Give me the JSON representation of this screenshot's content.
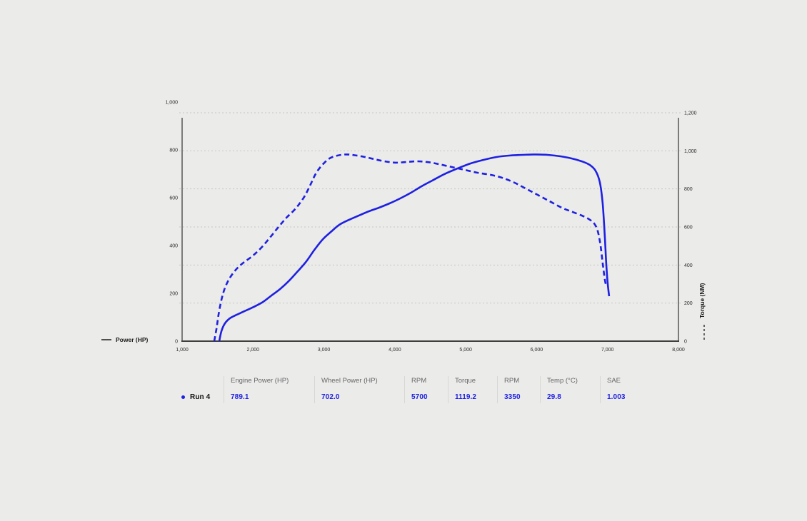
{
  "chart_data": {
    "type": "line",
    "title": "",
    "x": {
      "label": "",
      "min": 1000,
      "max": 8000,
      "tick_step": 1000
    },
    "y_left": {
      "label": "Power (HP)",
      "min": 0,
      "max": 1000,
      "tick_step": 200
    },
    "y_right": {
      "label": "Torque (NM)",
      "min": 0,
      "max": 1200,
      "tick_step": 200,
      "gridlines": "dotted"
    },
    "legend_position": "bottom-left / right-axis",
    "series": [
      {
        "name": "Power (HP)",
        "axis": "left",
        "style": "solid",
        "color": "#1e20e2",
        "points": [
          [
            1524,
            0
          ],
          [
            1555,
            42
          ],
          [
            1605,
            75
          ],
          [
            1676,
            96
          ],
          [
            1767,
            110
          ],
          [
            1877,
            125
          ],
          [
            2009,
            143
          ],
          [
            2140,
            164
          ],
          [
            2261,
            191
          ],
          [
            2382,
            218
          ],
          [
            2503,
            251
          ],
          [
            2624,
            290
          ],
          [
            2745,
            331
          ],
          [
            2866,
            382
          ],
          [
            2987,
            427
          ],
          [
            3098,
            457
          ],
          [
            3219,
            487
          ],
          [
            3350,
            507
          ],
          [
            3491,
            525
          ],
          [
            3632,
            543
          ],
          [
            3774,
            558
          ],
          [
            3925,
            576
          ],
          [
            4076,
            597
          ],
          [
            4228,
            621
          ],
          [
            4379,
            648
          ],
          [
            4530,
            672
          ],
          [
            4702,
            699
          ],
          [
            4883,
            722
          ],
          [
            5065,
            743
          ],
          [
            5246,
            758
          ],
          [
            5428,
            770
          ],
          [
            5609,
            776
          ],
          [
            5791,
            779
          ],
          [
            5972,
            781
          ],
          [
            6154,
            779
          ],
          [
            6336,
            773
          ],
          [
            6497,
            764
          ],
          [
            6638,
            752
          ],
          [
            6749,
            737
          ],
          [
            6830,
            713
          ],
          [
            6890,
            666
          ],
          [
            6931,
            576
          ],
          [
            6961,
            442
          ],
          [
            6981,
            328
          ],
          [
            7002,
            242
          ],
          [
            7022,
            188
          ]
        ]
      },
      {
        "name": "Torque (NM)",
        "axis": "right",
        "style": "dashed",
        "color": "#1e20e2",
        "points": [
          [
            1453,
            0
          ],
          [
            1484,
            64
          ],
          [
            1514,
            139
          ],
          [
            1555,
            218
          ],
          [
            1605,
            281
          ],
          [
            1676,
            334
          ],
          [
            1767,
            379
          ],
          [
            1867,
            413
          ],
          [
            1988,
            446
          ],
          [
            2109,
            488
          ],
          [
            2230,
            540
          ],
          [
            2351,
            596
          ],
          [
            2473,
            649
          ],
          [
            2594,
            694
          ],
          [
            2715,
            754
          ],
          [
            2805,
            818
          ],
          [
            2886,
            881
          ],
          [
            2977,
            926
          ],
          [
            3078,
            960
          ],
          [
            3189,
            975
          ],
          [
            3310,
            981
          ],
          [
            3431,
            977
          ],
          [
            3572,
            968
          ],
          [
            3713,
            956
          ],
          [
            3854,
            945
          ],
          [
            4006,
            938
          ],
          [
            4157,
            941
          ],
          [
            4308,
            945
          ],
          [
            4460,
            941
          ],
          [
            4621,
            930
          ],
          [
            4802,
            915
          ],
          [
            4984,
            900
          ],
          [
            5165,
            885
          ],
          [
            5347,
            874
          ],
          [
            5508,
            859
          ],
          [
            5669,
            836
          ],
          [
            5841,
            803
          ],
          [
            6012,
            769
          ],
          [
            6184,
            735
          ],
          [
            6355,
            701
          ],
          [
            6506,
            679
          ],
          [
            6637,
            660
          ],
          [
            6738,
            641
          ],
          [
            6809,
            619
          ],
          [
            6860,
            581
          ],
          [
            6900,
            506
          ],
          [
            6930,
            413
          ],
          [
            6961,
            326
          ],
          [
            6981,
            289
          ]
        ]
      }
    ]
  },
  "run_table": {
    "run_label": "Run 4",
    "columns": [
      {
        "header": "Engine Power (HP)",
        "value": "789.1"
      },
      {
        "header": "Wheel Power (HP)",
        "value": "702.0"
      },
      {
        "header": "RPM",
        "value": "5700"
      },
      {
        "header": "Torque",
        "value": "1119.2"
      },
      {
        "header": "RPM",
        "value": "3350"
      },
      {
        "header": "Temp (°C)",
        "value": "29.8"
      },
      {
        "header": "SAE",
        "value": "1.003"
      }
    ]
  },
  "colors": {
    "accent_blue": "#1e20e2",
    "background": "#ebebe9",
    "axis_line": "#3f3f3f",
    "gridline": "#c6c6c3",
    "tick_text": "#2b2b2b",
    "header_text": "#67676b",
    "legend_text": "#1b1b1b",
    "divider": "#d7d7d4"
  }
}
